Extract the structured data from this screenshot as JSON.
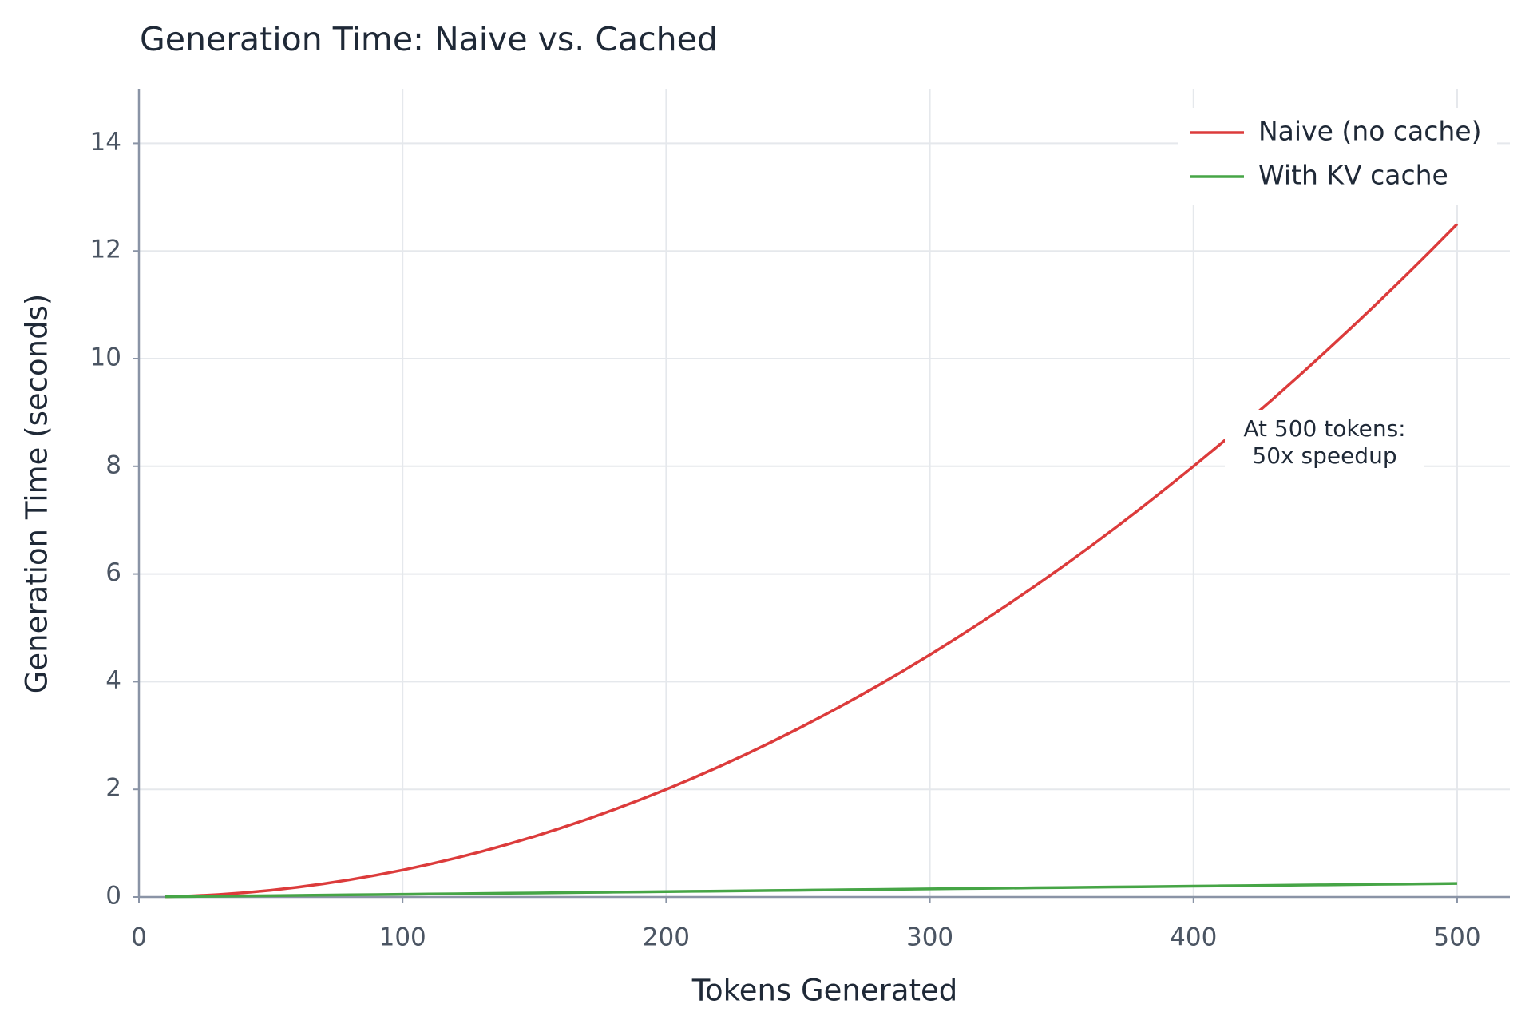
{
  "chart_data": {
    "type": "line",
    "title": "Generation Time: Naive vs. Cached",
    "xlabel": "Tokens Generated",
    "ylabel": "Generation Time (seconds)",
    "x": [
      10,
      20,
      30,
      40,
      50,
      60,
      70,
      80,
      90,
      100,
      110,
      120,
      130,
      140,
      150,
      160,
      170,
      180,
      190,
      200,
      210,
      220,
      230,
      240,
      250,
      260,
      270,
      280,
      290,
      300,
      310,
      320,
      330,
      340,
      350,
      360,
      370,
      380,
      390,
      400,
      410,
      420,
      430,
      440,
      450,
      460,
      470,
      480,
      490,
      500
    ],
    "series": [
      {
        "name": "Naive (no cache)",
        "color": "#dc3b3b",
        "values": [
          0.005,
          0.02,
          0.045,
          0.08,
          0.125,
          0.18,
          0.245,
          0.32,
          0.405,
          0.5,
          0.605,
          0.72,
          0.845,
          0.98,
          1.125,
          1.28,
          1.445,
          1.62,
          1.805,
          2.0,
          2.205,
          2.42,
          2.645,
          2.88,
          3.125,
          3.38,
          3.645,
          3.92,
          4.205,
          4.5,
          4.805,
          5.12,
          5.445,
          5.78,
          6.125,
          6.48,
          6.845,
          7.22,
          7.605,
          8.0,
          8.405,
          8.82,
          9.245,
          9.68,
          10.125,
          10.58,
          11.045,
          11.52,
          12.005,
          12.5
        ]
      },
      {
        "name": "With KV cache",
        "color": "#46a546",
        "values": [
          0.005,
          0.01,
          0.015,
          0.02,
          0.025,
          0.03,
          0.035,
          0.04,
          0.045,
          0.05,
          0.055,
          0.06,
          0.065,
          0.07,
          0.075,
          0.08,
          0.085,
          0.09,
          0.095,
          0.1,
          0.105,
          0.11,
          0.115,
          0.12,
          0.125,
          0.13,
          0.135,
          0.14,
          0.145,
          0.15,
          0.155,
          0.16,
          0.165,
          0.17,
          0.175,
          0.18,
          0.185,
          0.19,
          0.195,
          0.2,
          0.205,
          0.21,
          0.215,
          0.22,
          0.225,
          0.23,
          0.235,
          0.24,
          0.245,
          0.25
        ]
      }
    ],
    "annotation": [
      "At 500 tokens:",
      "50x speedup"
    ],
    "xlim": [
      0,
      520
    ],
    "xticks": [
      0,
      100,
      200,
      300,
      400,
      500
    ],
    "ylim": [
      0,
      15
    ],
    "yticks": [
      0,
      2,
      4,
      6,
      8,
      10,
      12,
      14
    ],
    "grid": true,
    "legend": "upper right"
  }
}
